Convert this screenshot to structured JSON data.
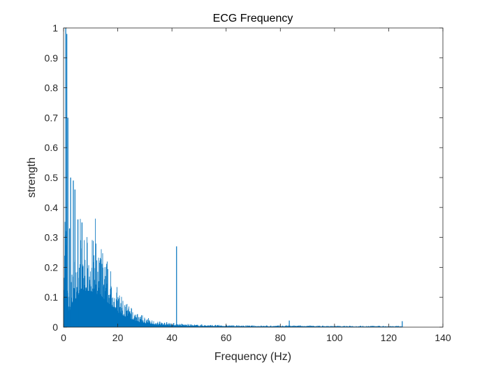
{
  "chart_data": {
    "type": "bar",
    "title": "ECG Frequency",
    "xlabel": "Frequency (Hz)",
    "ylabel": "strength",
    "xlim": [
      0,
      140
    ],
    "ylim": [
      0,
      1
    ],
    "xticks": [
      0,
      20,
      40,
      60,
      80,
      100,
      120,
      140
    ],
    "yticks": [
      0,
      0.1,
      0.2,
      0.3,
      0.4,
      0.5,
      0.6,
      0.7,
      0.8,
      0.9,
      1
    ],
    "grid": false,
    "bar_color": "#0072BD",
    "envelope": {
      "x": [
        0,
        0.5,
        1,
        2,
        3,
        4,
        5,
        6,
        7,
        8,
        9,
        10,
        11,
        12,
        13,
        14,
        15,
        16,
        17,
        18,
        19,
        20,
        22,
        24,
        26,
        28,
        30,
        32,
        34,
        36,
        38,
        40,
        42,
        44,
        46,
        48,
        50,
        55,
        60,
        70,
        80,
        90,
        100,
        110,
        120,
        125
      ],
      "values": [
        0.2,
        0.4,
        0.3,
        0.1,
        0.16,
        0.2,
        0.23,
        0.25,
        0.26,
        0.27,
        0.27,
        0.27,
        0.26,
        0.25,
        0.24,
        0.23,
        0.21,
        0.19,
        0.17,
        0.15,
        0.13,
        0.11,
        0.085,
        0.065,
        0.05,
        0.038,
        0.03,
        0.024,
        0.019,
        0.016,
        0.014,
        0.012,
        0.011,
        0.01,
        0.009,
        0.008,
        0.008,
        0.007,
        0.006,
        0.005,
        0.005,
        0.005,
        0.004,
        0.004,
        0.004,
        0.004
      ]
    },
    "peaks": [
      {
        "x": 0.8,
        "y": 1.0
      },
      {
        "x": 1.2,
        "y": 0.98
      },
      {
        "x": 1.6,
        "y": 0.7
      },
      {
        "x": 2.6,
        "y": 0.5
      },
      {
        "x": 3.6,
        "y": 0.49
      },
      {
        "x": 4.2,
        "y": 0.46
      },
      {
        "x": 2.2,
        "y": 0.33
      },
      {
        "x": 5.3,
        "y": 0.36
      },
      {
        "x": 6.8,
        "y": 0.35
      },
      {
        "x": 41.7,
        "y": 0.27
      },
      {
        "x": 83.3,
        "y": 0.022
      },
      {
        "x": 125,
        "y": 0.02
      }
    ]
  }
}
